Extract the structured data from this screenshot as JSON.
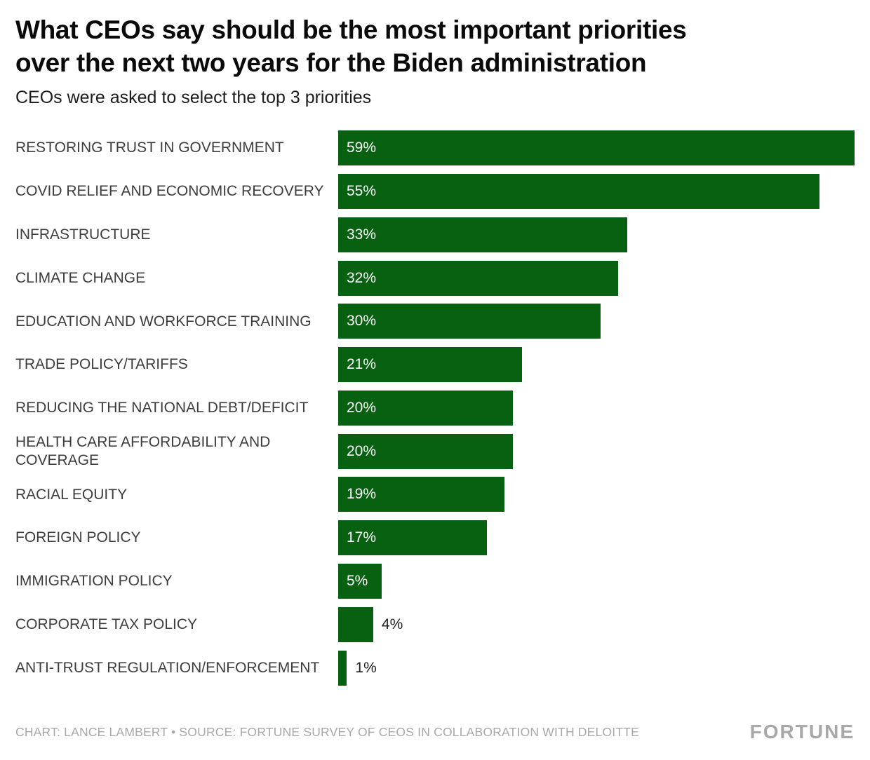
{
  "title": {
    "line1": "What CEOs say should be the most important priorities",
    "line2": "over the next two years for the Biden administration",
    "full": "What CEOs say should be the most important priorities over the next two years for the Biden administration"
  },
  "subtitle": "CEOs were asked to select the top 3 priorities",
  "footer": {
    "credit": "CHART: LANCE LAMBERT • SOURCE: FORTUNE SURVEY OF CEOS IN COLLABORATION WITH DELOITTE",
    "logo": "FORTUNE"
  },
  "colors": {
    "bar": "#076110",
    "value_inside": "#ffffff",
    "value_outside": "#222222",
    "category_label": "#3d3d3d",
    "footer_text": "#a8a8a8"
  },
  "chart_data": {
    "type": "bar",
    "orientation": "horizontal",
    "title": "What CEOs say should be the most important priorities over the next two years for the Biden administration",
    "subtitle": "CEOs were asked to select the top 3 priorities",
    "categories": [
      "RESTORING TRUST IN GOVERNMENT",
      "COVID RELIEF AND ECONOMIC RECOVERY",
      "INFRASTRUCTURE",
      "CLIMATE CHANGE",
      "EDUCATION AND WORKFORCE TRAINING",
      "TRADE POLICY/TARIFFS",
      "REDUCING THE NATIONAL DEBT/DEFICIT",
      "HEALTH CARE AFFORDABILITY AND COVERAGE",
      "RACIAL EQUITY",
      "FOREIGN POLICY",
      "IMMIGRATION POLICY",
      "CORPORATE TAX POLICY",
      "ANTI-TRUST REGULATION/ENFORCEMENT"
    ],
    "values": [
      59,
      55,
      33,
      32,
      30,
      21,
      20,
      20,
      19,
      17,
      5,
      4,
      1
    ],
    "value_labels": [
      "59%",
      "55%",
      "33%",
      "32%",
      "30%",
      "21%",
      "20%",
      "20%",
      "19%",
      "17%",
      "5%",
      "4%",
      "1%"
    ],
    "value_suffix": "%",
    "xlim": [
      0,
      59
    ],
    "grid": false,
    "legend": false,
    "bar_color": "#076110"
  }
}
